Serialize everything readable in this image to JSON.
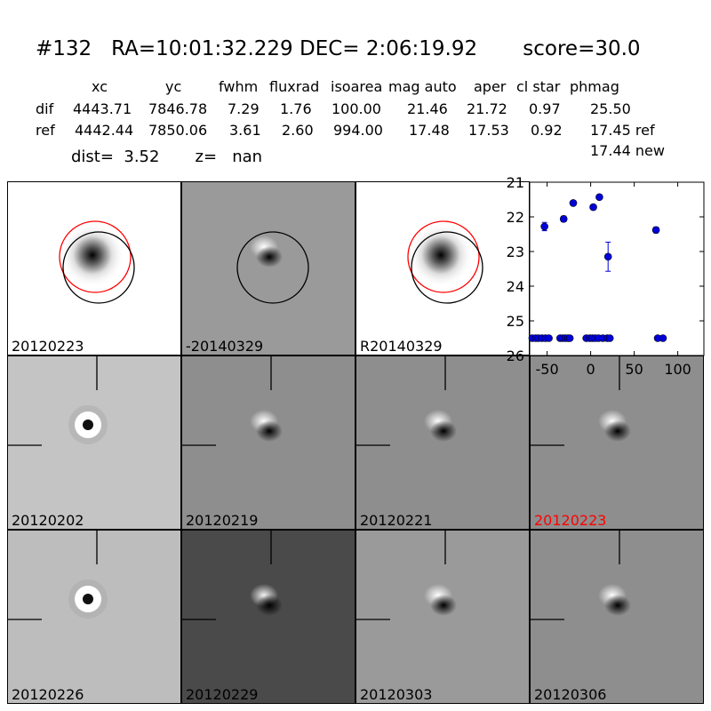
{
  "header": {
    "title": "#132   RA=10:01:32.229 DEC= 2:06:19.92       score=30.0",
    "columns": [
      "xc",
      "yc",
      "fwhm",
      "fluxrad",
      "isoarea",
      "mag auto",
      "aper",
      "cl star",
      "phmag"
    ],
    "rows": [
      {
        "label": "dif",
        "values": [
          "4443.71",
          "7846.78",
          "7.29",
          "1.76",
          "100.00",
          "21.46",
          "21.72",
          "0.97",
          "25.50"
        ]
      },
      {
        "label": "ref",
        "values": [
          "4442.44",
          "7850.06",
          "3.61",
          "2.60",
          "994.00",
          "17.48",
          "17.53",
          "0.92",
          "17.45 ref"
        ]
      }
    ],
    "phmag_extra": "17.44 new",
    "dist_line": "dist=  3.52       z=   nan"
  },
  "stamps": [
    {
      "label": "20120223",
      "bg": "#ffffff",
      "kind": "ref_star",
      "circles": true,
      "crosshair": false
    },
    {
      "label": "-20140329",
      "bg": "#9a9a9a",
      "kind": "dipole",
      "circles": true,
      "circle_red": false,
      "crosshair": false
    },
    {
      "label": "R20140329",
      "bg": "#ffffff",
      "kind": "ref_star",
      "circles": true,
      "crosshair": false
    },
    {
      "label": "20120202",
      "bg": "#c4c4c4",
      "kind": "ring",
      "crosshair": true
    },
    {
      "label": "20120219",
      "bg": "#8e8e8e",
      "kind": "dipole",
      "crosshair": true
    },
    {
      "label": "20120221",
      "bg": "#8e8e8e",
      "kind": "dipole",
      "crosshair": true
    },
    {
      "label": "20120223",
      "bg": "#8e8e8e",
      "kind": "dipole",
      "crosshair": true,
      "label_color": "#ff0000"
    },
    {
      "label": "20120226",
      "bg": "#bdbdbd",
      "kind": "ring",
      "crosshair": true
    },
    {
      "label": "20120229",
      "bg": "#4a4a4a",
      "kind": "dipole_dark",
      "crosshair": true
    },
    {
      "label": "20120303",
      "bg": "#9a9a9a",
      "kind": "dipole",
      "crosshair": true
    },
    {
      "label": "20120306",
      "bg": "#8e8e8e",
      "kind": "dipole",
      "crosshair": true
    }
  ],
  "chart_data": {
    "type": "scatter",
    "title": "",
    "xlabel": "",
    "ylabel": "",
    "xlim": [
      -70,
      130
    ],
    "ylim": [
      26,
      21
    ],
    "y_inverted": true,
    "xticks": [
      -50,
      0,
      50,
      100
    ],
    "yticks": [
      21,
      22,
      23,
      24,
      25,
      26
    ],
    "marker_color": "#0000dd",
    "points": [
      {
        "x": -67,
        "y": 25.5
      },
      {
        "x": -63,
        "y": 25.5
      },
      {
        "x": -60,
        "y": 25.5
      },
      {
        "x": -56,
        "y": 25.5
      },
      {
        "x": -52,
        "y": 25.5
      },
      {
        "x": -48,
        "y": 25.5
      },
      {
        "x": -53,
        "y": 22.28,
        "err": 0.12
      },
      {
        "x": -35,
        "y": 25.5
      },
      {
        "x": -32,
        "y": 25.5
      },
      {
        "x": -29,
        "y": 25.5
      },
      {
        "x": -26,
        "y": 25.5
      },
      {
        "x": -24,
        "y": 25.5
      },
      {
        "x": -31,
        "y": 22.06,
        "err": 0.08
      },
      {
        "x": -20,
        "y": 21.6
      },
      {
        "x": -5,
        "y": 25.5
      },
      {
        "x": -1,
        "y": 25.5
      },
      {
        "x": 2,
        "y": 25.5
      },
      {
        "x": 5,
        "y": 25.5
      },
      {
        "x": 3,
        "y": 21.72
      },
      {
        "x": 10,
        "y": 21.43
      },
      {
        "x": 9,
        "y": 25.5
      },
      {
        "x": 14,
        "y": 25.5
      },
      {
        "x": 19,
        "y": 25.5
      },
      {
        "x": 22,
        "y": 25.5
      },
      {
        "x": 20,
        "y": 23.15,
        "err": 0.42
      },
      {
        "x": 75,
        "y": 22.38,
        "err": 0.08
      },
      {
        "x": 77,
        "y": 25.5
      },
      {
        "x": 83,
        "y": 25.5
      }
    ]
  }
}
